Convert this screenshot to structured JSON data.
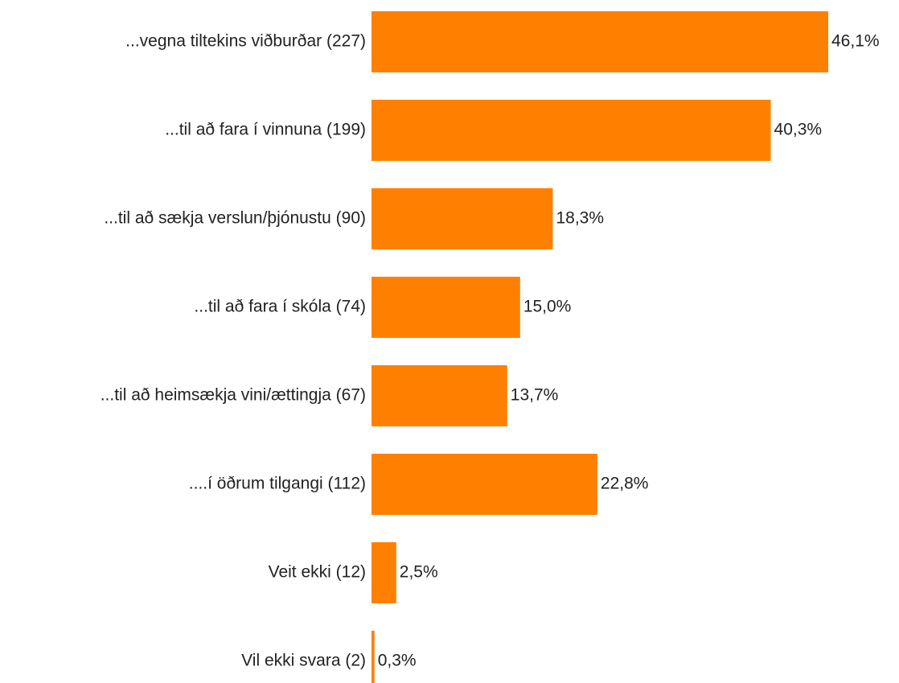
{
  "chart_data": {
    "type": "bar",
    "orientation": "horizontal",
    "categories": [
      "...vegna tiltekins viðburðar (227)",
      "...til að fara í vinnuna (199)",
      "...til að sækja verslun/þjónustu (90)",
      "...til að fara í skóla (74)",
      "...til að heimsækja vini/ættingja (67)",
      "....í öðrum tilgangi (112)",
      "Veit ekki (12)",
      "Vil ekki svara (2)"
    ],
    "values": [
      46.1,
      40.3,
      18.3,
      15.0,
      13.7,
      22.8,
      2.5,
      0.3
    ],
    "value_labels": [
      "46,1%",
      "40,3%",
      "18,3%",
      "15,0%",
      "13,7%",
      "22,8%",
      "2,5%",
      "0,3%"
    ],
    "color": "#ff8000"
  }
}
